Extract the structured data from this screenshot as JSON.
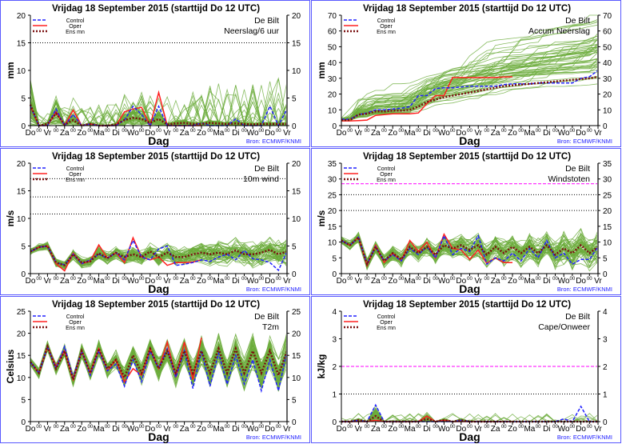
{
  "header": {
    "title": "Vrijdag   18 September 2015  (starttijd  Do 12 UTC)"
  },
  "station": "De Bilt",
  "source": "Bron: ECMWF/KNMI",
  "xlabel": "Dag",
  "day_labels": [
    "Do",
    "Vr",
    "Za",
    "Zo",
    "Ma",
    "Di",
    "Wo",
    "Do",
    "Vr",
    "Za",
    "Zo",
    "Ma",
    "Di",
    "Wo",
    "Do",
    "Vr"
  ],
  "midnight_marker": "00",
  "legend": {
    "control": "Control",
    "oper": "Oper",
    "ensmean": "Ens mn"
  },
  "colors": {
    "control": "#2222ff",
    "oper": "#ff2020",
    "ensmean": "#7a1010",
    "members": "#6aab3a",
    "border": "#5a5aff",
    "alert": "#ff33ff"
  },
  "chart_data": [
    {
      "type": "line",
      "name": "Neerslag/6 uur",
      "ylabel": "mm",
      "ylim": [
        0,
        20
      ],
      "ystep": 5,
      "xlim": [
        0,
        15
      ],
      "x_step_days": 0.5,
      "members_kind": "precip",
      "ensemble_spread": 2.5,
      "ref_lines": [
        {
          "y": 15,
          "style": "dotted"
        }
      ],
      "control": [
        3.5,
        0,
        0,
        3,
        0,
        2,
        0,
        0.3,
        0,
        0,
        0,
        1,
        3.5,
        2,
        0,
        3.5,
        0,
        0,
        0,
        0,
        0.5,
        0,
        0,
        0,
        1.2,
        0,
        0,
        0,
        3.5,
        0,
        3
      ],
      "oper": [
        3.5,
        0,
        0,
        2.5,
        0,
        2.8,
        0,
        0.3,
        0,
        0,
        0,
        2.5,
        3,
        3.3,
        0,
        6,
        0,
        0,
        0,
        0,
        0
      ],
      "ensmean": [
        3.8,
        0,
        0.3,
        2.2,
        0.2,
        1,
        0,
        0.3,
        0,
        0,
        0.2,
        1,
        1.4,
        1.2,
        0.5,
        1.2,
        0.2,
        0.4,
        0.5,
        0.3,
        0.3,
        0.5,
        0.4,
        0.3,
        0.4,
        0.3,
        0.2,
        0.3,
        0.3,
        0.3,
        0.3
      ]
    },
    {
      "type": "line",
      "name": "Accum Neerslag",
      "ylabel": "mm",
      "ylim": [
        0,
        70
      ],
      "ystep": 10,
      "xlim": [
        0,
        15
      ],
      "x_step_days": 0.5,
      "members_kind": "accum",
      "ensemble_spread": 1.6,
      "ref_lines": [],
      "control": [
        4,
        4,
        7,
        8,
        10,
        10,
        10.5,
        11,
        12,
        19,
        19,
        23.5,
        24,
        24,
        24.5,
        25,
        25,
        25,
        25,
        26,
        26.5,
        26.5,
        26.5,
        27,
        27,
        27,
        27,
        27,
        30,
        31,
        35
      ],
      "oper": [
        3,
        3,
        3.2,
        3.5,
        6.5,
        7,
        7.5,
        7.5,
        7.5,
        8,
        14,
        19,
        19,
        30.5,
        30.5,
        30.5,
        30.5,
        30.5,
        30.5,
        30.8,
        31
      ],
      "ensmean": [
        3.5,
        3.5,
        7,
        7.5,
        9,
        9,
        9.5,
        9.5,
        10,
        12,
        15,
        16.5,
        18,
        19,
        20,
        21,
        22,
        23,
        24,
        25,
        25.5,
        26,
        26.5,
        27,
        27.5,
        28,
        28.5,
        29,
        29.5,
        30,
        31
      ]
    },
    {
      "type": "line",
      "name": "10m wind",
      "ylabel": "m/s",
      "ylim": [
        0,
        20
      ],
      "ystep": 5,
      "xlim": [
        0,
        15
      ],
      "x_step_days": 0.5,
      "members_kind": "normal",
      "ensemble_spread": 1.2,
      "ref_lines": [
        {
          "y": 10.8,
          "style": "dotted"
        },
        {
          "y": 13.9,
          "style": "dotted"
        },
        {
          "y": 17.2,
          "style": "dotted"
        }
      ],
      "control": [
        4,
        4.8,
        5,
        2,
        1.6,
        3.5,
        1.8,
        2.5,
        3.5,
        2.8,
        3.8,
        2.5,
        6,
        3,
        2.5,
        4.5,
        5,
        1.5,
        1.7,
        2,
        2.5,
        2.2,
        3,
        3.5,
        2.5,
        4.2,
        2.7,
        2.5,
        2,
        0.6,
        4
      ],
      "oper": [
        4,
        4.8,
        5,
        1.8,
        0.5,
        3.7,
        1.8,
        2.3,
        5.2,
        2.8,
        3.8,
        2,
        6.5,
        3,
        2.5,
        3,
        1.5,
        2,
        2,
        2.1,
        2.5
      ],
      "ensmean": [
        4,
        4.8,
        5,
        2,
        1.5,
        3.5,
        2,
        2.2,
        3.7,
        2.8,
        3.8,
        3,
        3.5,
        3,
        4,
        3,
        3.8,
        3,
        3,
        3.5,
        3.8,
        3.5,
        3.8,
        3.5,
        4.2,
        3.5,
        3.5,
        3.8,
        4.3,
        3.5,
        4
      ]
    },
    {
      "type": "line",
      "name": "Windstoten",
      "ylabel": "m/s",
      "ylim": [
        0,
        35
      ],
      "ystep": 5,
      "xlim": [
        0,
        15
      ],
      "x_step_days": 0.5,
      "members_kind": "normal",
      "ensemble_spread": 2.6,
      "ref_lines": [
        {
          "y": 20,
          "style": "dotted"
        },
        {
          "y": 25,
          "style": "dotted"
        },
        {
          "y": 28.5,
          "style": "alert"
        }
      ],
      "control": [
        10.5,
        9,
        11.5,
        3,
        8.5,
        4,
        6,
        4,
        8,
        6,
        8.5,
        5,
        12,
        6,
        8,
        7,
        12,
        3,
        5,
        4,
        6.5,
        4,
        8,
        5,
        10.5,
        5,
        6.5,
        3,
        4.5,
        4.5,
        8.5
      ],
      "oper": [
        10.5,
        9,
        11.5,
        2.5,
        9,
        3.5,
        6.5,
        4,
        10.5,
        7,
        10,
        5,
        12.5,
        8,
        7.5,
        4.5,
        7.5,
        3.2,
        5,
        3.5,
        3.5
      ],
      "ensmean": [
        10.5,
        9,
        11.5,
        3,
        8.5,
        4,
        6.5,
        4.5,
        8.5,
        6.5,
        8.5,
        6,
        9,
        8,
        9,
        7.5,
        9,
        6,
        8.5,
        6.5,
        8.5,
        6.5,
        8.5,
        6.5,
        9,
        6,
        8,
        6.5,
        9,
        6.5,
        8.5
      ]
    },
    {
      "type": "line",
      "name": "T2m",
      "ylabel": "Celsius",
      "ylim": [
        0,
        25
      ],
      "ystep": 5,
      "xlim": [
        0,
        15
      ],
      "x_step_days": 0.5,
      "members_kind": "normal",
      "ensemble_spread": 2.0,
      "ref_lines": [],
      "control": [
        13.5,
        11,
        17,
        12,
        17,
        10,
        16,
        10.5,
        16,
        11.5,
        13,
        8,
        14,
        9,
        16,
        12,
        16.5,
        10,
        16,
        7.5,
        16,
        8,
        15.5,
        8.5,
        15,
        8.5,
        14,
        7,
        14,
        7,
        16
      ],
      "oper": [
        13.5,
        11,
        17,
        12.5,
        16,
        9.5,
        16,
        11,
        16.5,
        11.5,
        14,
        9,
        12,
        10.5,
        16.5,
        12,
        18,
        10,
        18,
        9.5,
        19
      ],
      "ensmean": [
        13.5,
        11,
        17,
        12,
        16,
        9.5,
        16,
        11,
        16.5,
        12,
        14,
        10,
        15,
        11,
        16.5,
        12,
        16,
        11,
        16,
        11,
        16,
        11,
        16.5,
        11,
        16.5,
        11,
        16,
        11,
        16,
        10.5,
        16
      ]
    },
    {
      "type": "line",
      "name": "Cape/Onweer",
      "ylabel": "kJ/kg",
      "ylim": [
        0,
        4
      ],
      "ystep": 1,
      "xlim": [
        0,
        15
      ],
      "x_step_days": 0.5,
      "members_kind": "cape",
      "ensemble_spread": 0.15,
      "ref_lines": [
        {
          "y": 1,
          "style": "dotted"
        },
        {
          "y": 2,
          "style": "alert"
        }
      ],
      "control": [
        0,
        0,
        0.05,
        0,
        0.6,
        0,
        0,
        0,
        0,
        0,
        0,
        0,
        0,
        0,
        0.05,
        0,
        0,
        0,
        0,
        0,
        0,
        0,
        0,
        0,
        0,
        0,
        0.1,
        0,
        0.55,
        0,
        0
      ],
      "oper": [
        0,
        0,
        0,
        0,
        0.05,
        0,
        0,
        0,
        0,
        0,
        0.2,
        0,
        0.05,
        0,
        0,
        0,
        0,
        0,
        0,
        0,
        0
      ],
      "ensmean": [
        0,
        0,
        0.05,
        0,
        0.2,
        0,
        0,
        0,
        0,
        0,
        0.1,
        0,
        0.05,
        0,
        0.05,
        0,
        0,
        0,
        0,
        0,
        0,
        0,
        0,
        0,
        0,
        0,
        0,
        0,
        0,
        0,
        0
      ]
    }
  ]
}
